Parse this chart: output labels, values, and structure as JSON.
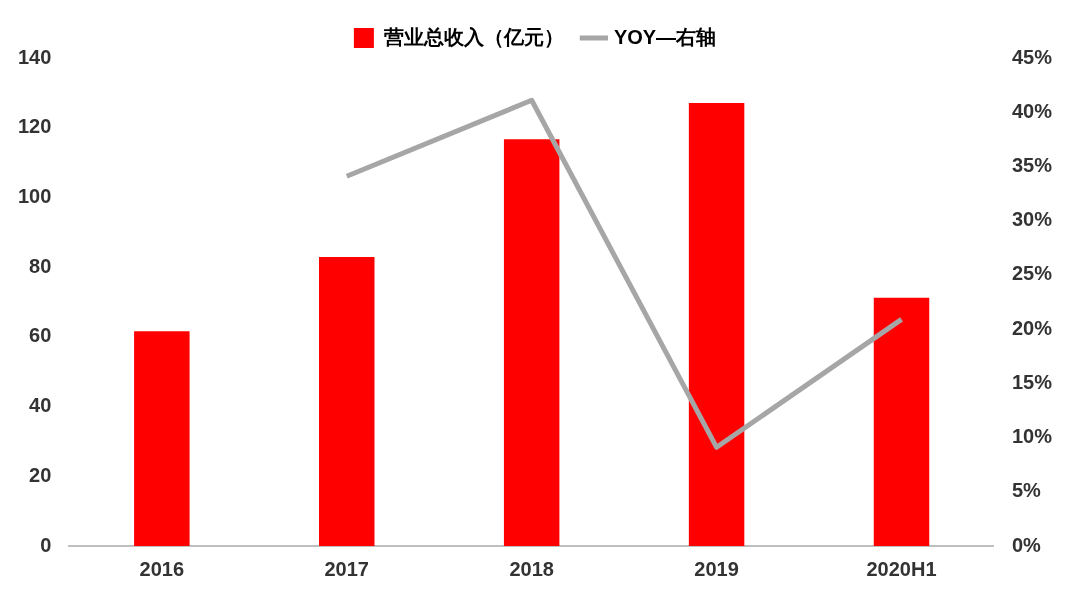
{
  "chart_data": {
    "type": "bar",
    "categories": [
      "2016",
      "2017",
      "2018",
      "2019",
      "2020H1"
    ],
    "series": [
      {
        "name": "营业总收入（亿元）",
        "color": "#ff0000",
        "values": [
          61.6,
          82.9,
          116.7,
          127.1,
          71.2
        ]
      },
      {
        "name": "YOY—右轴",
        "type": "line",
        "axis": "y2",
        "color": "#a6a6a6",
        "values": [
          null,
          34.1,
          41.1,
          9.1,
          20.9
        ],
        "marker": "none"
      }
    ],
    "ylim": [
      0,
      140
    ],
    "yticks": [
      0,
      20,
      40,
      60,
      80,
      100,
      120,
      140
    ],
    "y2lim": [
      0,
      45
    ],
    "y2ticks": [
      {
        "value": 0,
        "label": "0%"
      },
      {
        "value": 5,
        "label": "5%"
      },
      {
        "value": 10,
        "label": "10%"
      },
      {
        "value": 15,
        "label": "15%"
      },
      {
        "value": 20,
        "label": "20%"
      },
      {
        "value": 25,
        "label": "25%"
      },
      {
        "value": 30,
        "label": "30%"
      },
      {
        "value": 35,
        "label": "35%"
      },
      {
        "value": 40,
        "label": "40%"
      },
      {
        "value": 45,
        "label": "45%"
      }
    ],
    "grid": false,
    "legend": "top"
  }
}
